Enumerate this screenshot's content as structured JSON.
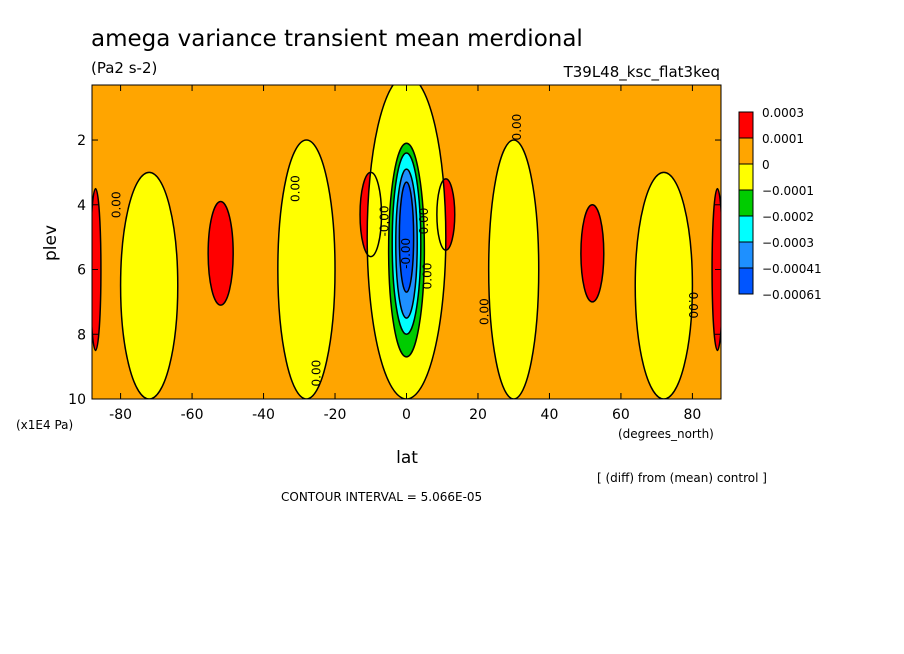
{
  "chart_data": {
    "type": "heatmap",
    "title": "amega variance transient mean merdional",
    "units": "(Pa2 s-2)",
    "experiment": "T39L48_ksc_flat3keq",
    "xlabel": "lat",
    "x_unit_label": "(degrees_north)",
    "ylabel": "plev",
    "y_unit_label": "(x1E4 Pa)",
    "xlim": [
      -88,
      88
    ],
    "ylim": [
      10,
      0.3
    ],
    "x_ticks": [
      "-80",
      "-60",
      "-40",
      "-20",
      "0",
      "20",
      "40",
      "60",
      "80"
    ],
    "y_ticks": [
      "2",
      "4",
      "6",
      "8",
      "10"
    ],
    "x_tick_values": [
      -80,
      -60,
      -40,
      -20,
      0,
      20,
      40,
      60,
      80
    ],
    "y_tick_values": [
      2,
      4,
      6,
      8,
      10
    ],
    "background_level": "0 to 0.0001",
    "legend": {
      "labels": [
        "0.0003",
        "0.0001",
        "0",
        "−0.0001",
        "−0.0002",
        "−0.0003",
        "−0.00041",
        "−0.00061"
      ],
      "colors": [
        "#ff0000",
        "#ffa500",
        "#ffff00",
        "#00cc00",
        "#00ffff",
        "#1e90ff",
        "#0055ff"
      ]
    },
    "regions": [
      {
        "level": "0.0001 to 0.0003",
        "color": "#ff0000",
        "center": [
          -52,
          5.5
        ],
        "half_width": [
          3.5,
          1.6
        ]
      },
      {
        "level": "0.0001 to 0.0003",
        "color": "#ff0000",
        "center": [
          -10,
          4.3
        ],
        "half_width": [
          3,
          1.3
        ]
      },
      {
        "level": "0.0001 to 0.0003",
        "color": "#ff0000",
        "center": [
          11,
          4.3
        ],
        "half_width": [
          2.5,
          1.1
        ]
      },
      {
        "level": "0.0001 to 0.0003",
        "color": "#ff0000",
        "center": [
          52,
          5.5
        ],
        "half_width": [
          3.2,
          1.5
        ]
      },
      {
        "level": "0.0001 to 0.0003",
        "color": "#ff0000",
        "center": [
          -87,
          6
        ],
        "half_width": [
          1.5,
          2.5
        ]
      },
      {
        "level": "0.0001 to 0.0003",
        "color": "#ff0000",
        "center": [
          87,
          6
        ],
        "half_width": [
          1.5,
          2.5
        ]
      },
      {
        "level": "0 to -0.0001",
        "color": "#ffff00",
        "center": [
          -72,
          6.5
        ],
        "half_width": [
          8,
          3.5
        ]
      },
      {
        "level": "0 to -0.0001",
        "color": "#ffff00",
        "center": [
          -28,
          6
        ],
        "half_width": [
          8,
          4
        ]
      },
      {
        "level": "0 to -0.0001",
        "color": "#ffff00",
        "center": [
          0,
          5
        ],
        "half_width": [
          11,
          5
        ]
      },
      {
        "level": "0 to -0.0001",
        "color": "#ffff00",
        "center": [
          30,
          6
        ],
        "half_width": [
          7,
          4
        ]
      },
      {
        "level": "0 to -0.0001",
        "color": "#ffff00",
        "center": [
          72,
          6.5
        ],
        "half_width": [
          8,
          3.5
        ]
      },
      {
        "level": "-0.0001 to -0.0002",
        "color": "#00cc00",
        "center": [
          0,
          5.4
        ],
        "half_width": [
          5,
          3.3
        ]
      },
      {
        "level": "-0.0002 to -0.0003",
        "color": "#00ffff",
        "center": [
          0,
          5.2
        ],
        "half_width": [
          4,
          2.8
        ]
      },
      {
        "level": "-0.0003 to -0.00041",
        "color": "#1e90ff",
        "center": [
          0,
          5.2
        ],
        "half_width": [
          3,
          2.3
        ]
      },
      {
        "level": "-0.00041 to -0.00061",
        "color": "#0055ff",
        "center": [
          0,
          5.0
        ],
        "half_width": [
          2,
          1.7
        ]
      }
    ],
    "contour_labels": [
      {
        "text": "0.00",
        "lat": -80,
        "plev": 4.0,
        "angle": -90
      },
      {
        "text": "0.00",
        "lat": -30,
        "plev": 3.5,
        "angle": -90
      },
      {
        "text": "0.00",
        "lat": -24,
        "plev": 9.2,
        "angle": -90
      },
      {
        "text": "-0.00",
        "lat": -5,
        "plev": 4.5,
        "angle": -90
      },
      {
        "text": "-0.00",
        "lat": 1,
        "plev": 5.5,
        "angle": -90
      },
      {
        "text": "0.00",
        "lat": 6,
        "plev": 4.5,
        "angle": -90
      },
      {
        "text": "0.00",
        "lat": 7,
        "plev": 6.2,
        "angle": -90
      },
      {
        "text": "0.00",
        "lat": 23,
        "plev": 7.3,
        "angle": -90
      },
      {
        "text": "0.00",
        "lat": 32,
        "plev": 1.6,
        "angle": -90
      },
      {
        "text": "0.00",
        "lat": 79,
        "plev": 7.1,
        "angle": 90
      }
    ],
    "footnote": "[ (diff) from (mean) control ]",
    "contour_interval": "CONTOUR INTERVAL = 5.066E-05"
  }
}
